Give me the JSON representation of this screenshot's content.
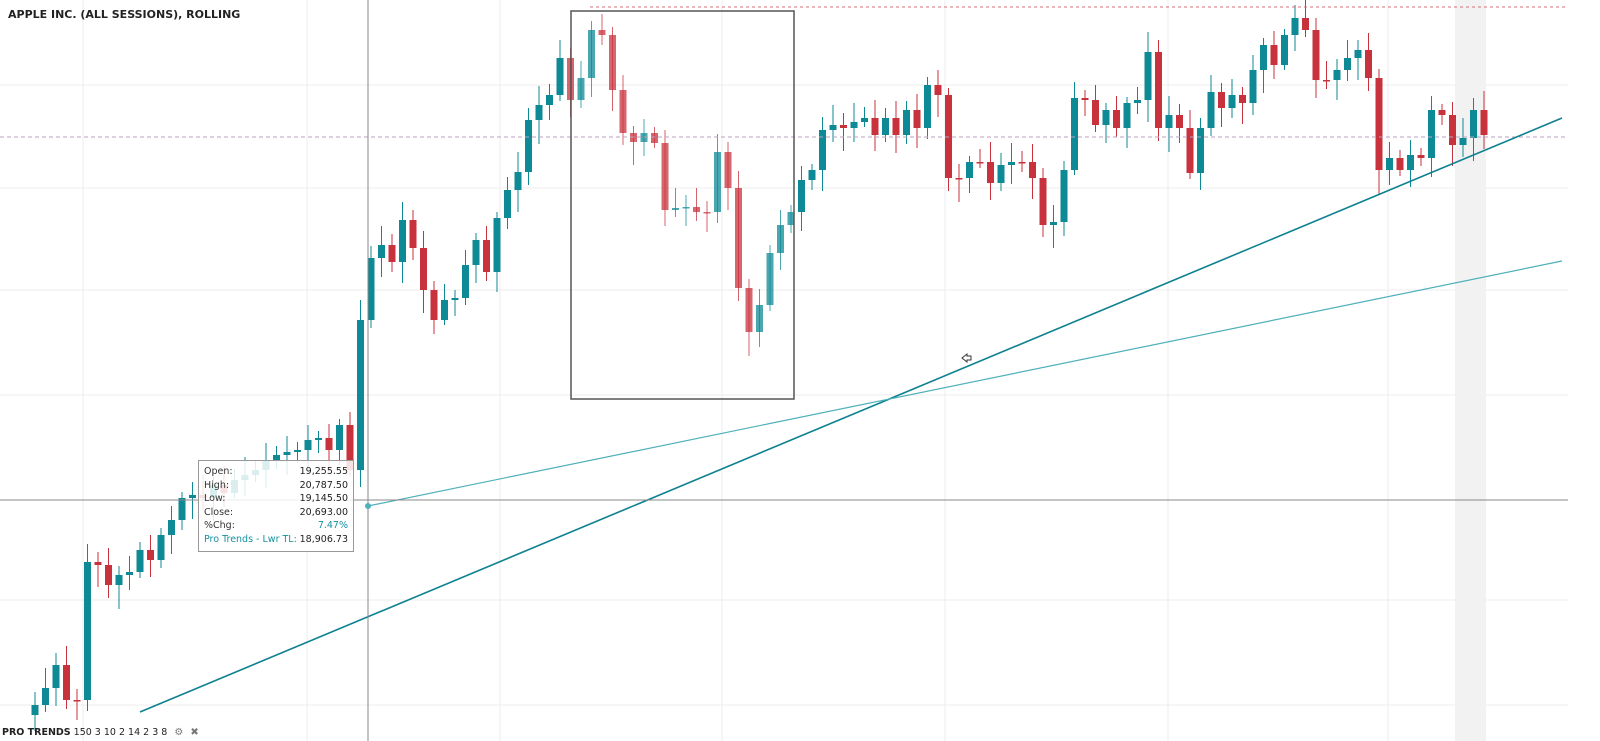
{
  "header": {
    "title": "APPLE INC. (ALL SESSIONS), ROLLING"
  },
  "tooltip": {
    "rows": [
      {
        "label": "Open:",
        "value": "19,255.55"
      },
      {
        "label": "High:",
        "value": "20,787.50"
      },
      {
        "label": "Low:",
        "value": "19,145.50"
      },
      {
        "label": "Close:",
        "value": "20,693.00"
      },
      {
        "label": "%Chg:",
        "value": "7.47%"
      },
      {
        "label": "Pro Trends - Lwr TL:",
        "value": "18,906.73"
      }
    ]
  },
  "footer": {
    "indicator": "PRO TRENDS",
    "params": "150 3 10 2 14 2 3 8"
  }
}
